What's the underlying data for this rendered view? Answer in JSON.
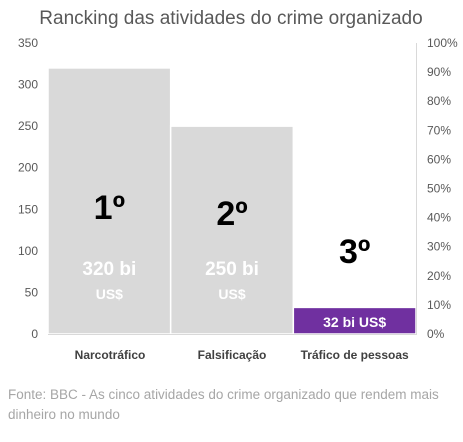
{
  "chart_data": {
    "type": "bar",
    "title": "Rancking das atividades do crime organizado",
    "categories": [
      "Narcotráfico",
      "Falsificação",
      "Tráfico de pessoas"
    ],
    "values": [
      320,
      250,
      32
    ],
    "ranks": [
      "1º",
      "2º",
      "3º"
    ],
    "value_labels": [
      {
        "amount": "320 bi",
        "unit": "US$"
      },
      {
        "amount": "250 bi",
        "unit": "US$"
      },
      {
        "amount": "32 bi US$",
        "unit": ""
      }
    ],
    "bar_colors": [
      "#d9d9d9",
      "#d9d9d9",
      "#7030a0"
    ],
    "ylim": [
      0,
      350
    ],
    "yticks": [
      "0",
      "50",
      "100",
      "150",
      "200",
      "250",
      "300",
      "350"
    ],
    "y2ticks": [
      "0%",
      "10%",
      "20%",
      "30%",
      "40%",
      "50%",
      "60%",
      "70%",
      "80%",
      "90%",
      "100%"
    ],
    "grid": false,
    "xlabel": "",
    "ylabel": ""
  },
  "source": "Fonte: BBC - As cinco atividades do crime organizado que rendem mais dinheiro no mundo"
}
